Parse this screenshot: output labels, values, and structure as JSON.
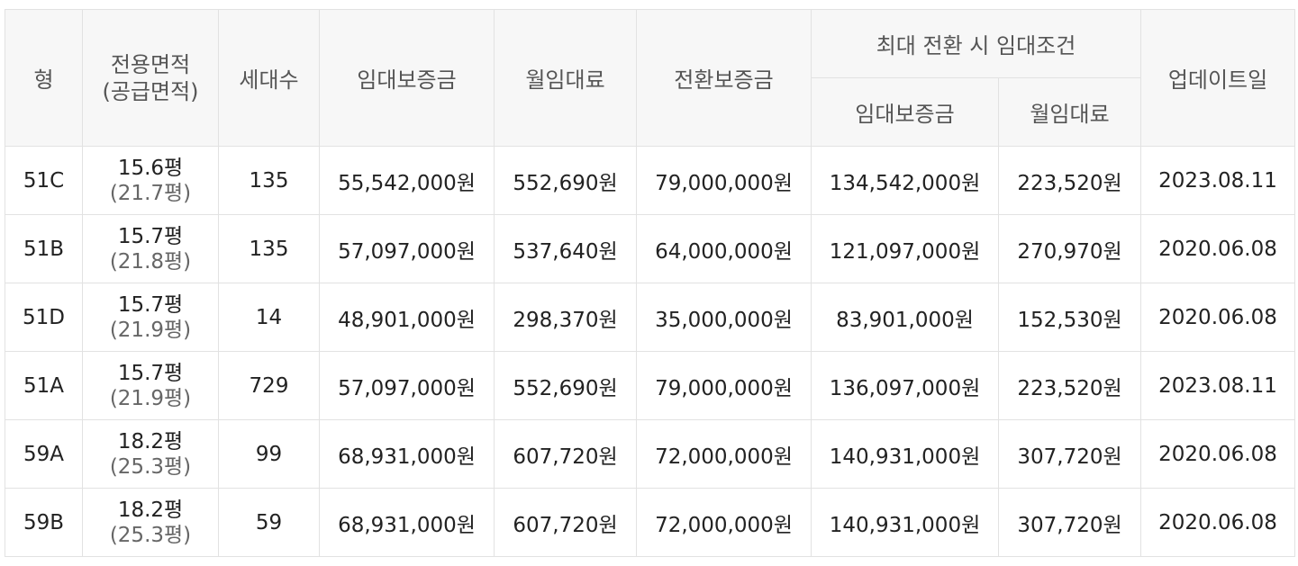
{
  "header": {
    "type": "형",
    "area_line1": "전용면적",
    "area_line2": "(공급면적)",
    "households": "세대수",
    "deposit": "임대보증금",
    "monthly_rent": "월임대료",
    "conversion_deposit": "전환보증금",
    "max_conversion_group": "최대 전환 시 임대조건",
    "max_deposit": "임대보증금",
    "max_monthly_rent": "월임대료",
    "updated": "업데이트일"
  },
  "rows": [
    {
      "type": "51C",
      "area": "15.6평",
      "supply_area": "(21.7평)",
      "households": "135",
      "deposit": "55,542,000원",
      "monthly_rent": "552,690원",
      "conversion_deposit": "79,000,000원",
      "max_deposit": "134,542,000원",
      "max_monthly_rent": "223,520원",
      "updated": "2023.08.11"
    },
    {
      "type": "51B",
      "area": "15.7평",
      "supply_area": "(21.8평)",
      "households": "135",
      "deposit": "57,097,000원",
      "monthly_rent": "537,640원",
      "conversion_deposit": "64,000,000원",
      "max_deposit": "121,097,000원",
      "max_monthly_rent": "270,970원",
      "updated": "2020.06.08"
    },
    {
      "type": "51D",
      "area": "15.7평",
      "supply_area": "(21.9평)",
      "households": "14",
      "deposit": "48,901,000원",
      "monthly_rent": "298,370원",
      "conversion_deposit": "35,000,000원",
      "max_deposit": "83,901,000원",
      "max_monthly_rent": "152,530원",
      "updated": "2020.06.08"
    },
    {
      "type": "51A",
      "area": "15.7평",
      "supply_area": "(21.9평)",
      "households": "729",
      "deposit": "57,097,000원",
      "monthly_rent": "552,690원",
      "conversion_deposit": "79,000,000원",
      "max_deposit": "136,097,000원",
      "max_monthly_rent": "223,520원",
      "updated": "2023.08.11"
    },
    {
      "type": "59A",
      "area": "18.2평",
      "supply_area": "(25.3평)",
      "households": "99",
      "deposit": "68,931,000원",
      "monthly_rent": "607,720원",
      "conversion_deposit": "72,000,000원",
      "max_deposit": "140,931,000원",
      "max_monthly_rent": "307,720원",
      "updated": "2020.06.08"
    },
    {
      "type": "59B",
      "area": "18.2평",
      "supply_area": "(25.3평)",
      "households": "59",
      "deposit": "68,931,000원",
      "monthly_rent": "607,720원",
      "conversion_deposit": "72,000,000원",
      "max_deposit": "140,931,000원",
      "max_monthly_rent": "307,720원",
      "updated": "2020.06.08"
    }
  ]
}
